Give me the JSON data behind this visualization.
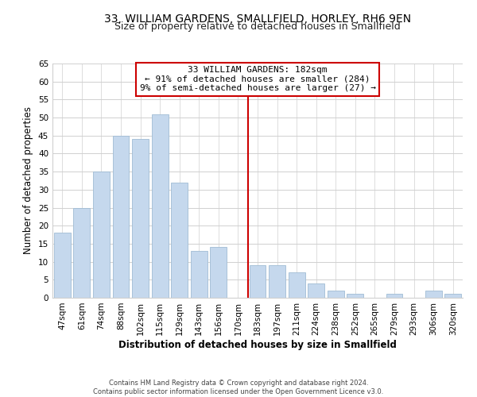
{
  "title": "33, WILLIAM GARDENS, SMALLFIELD, HORLEY, RH6 9EN",
  "subtitle": "Size of property relative to detached houses in Smallfield",
  "xlabel": "Distribution of detached houses by size in Smallfield",
  "ylabel": "Number of detached properties",
  "categories": [
    "47sqm",
    "61sqm",
    "74sqm",
    "88sqm",
    "102sqm",
    "115sqm",
    "129sqm",
    "143sqm",
    "156sqm",
    "170sqm",
    "183sqm",
    "197sqm",
    "211sqm",
    "224sqm",
    "238sqm",
    "252sqm",
    "265sqm",
    "279sqm",
    "293sqm",
    "306sqm",
    "320sqm"
  ],
  "values": [
    18,
    25,
    35,
    45,
    44,
    51,
    32,
    13,
    14,
    0,
    9,
    9,
    7,
    4,
    2,
    1,
    0,
    1,
    0,
    2,
    1
  ],
  "bar_color": "#c5d8ed",
  "bar_edge_color": "#a0bcd4",
  "ylim": [
    0,
    65
  ],
  "yticks": [
    0,
    5,
    10,
    15,
    20,
    25,
    30,
    35,
    40,
    45,
    50,
    55,
    60,
    65
  ],
  "vline_x_index": 10,
  "vline_color": "#cc0000",
  "annotation_title": "33 WILLIAM GARDENS: 182sqm",
  "annotation_line1": "← 91% of detached houses are smaller (284)",
  "annotation_line2": "9% of semi-detached houses are larger (27) →",
  "annotation_box_color": "#ffffff",
  "annotation_box_edge": "#cc0000",
  "footer1": "Contains HM Land Registry data © Crown copyright and database right 2024.",
  "footer2": "Contains public sector information licensed under the Open Government Licence v3.0.",
  "background_color": "#ffffff",
  "grid_color": "#d0d0d0",
  "title_fontsize": 10,
  "subtitle_fontsize": 9,
  "axis_label_fontsize": 8.5,
  "tick_fontsize": 7.5,
  "annotation_fontsize": 8,
  "footer_fontsize": 6
}
